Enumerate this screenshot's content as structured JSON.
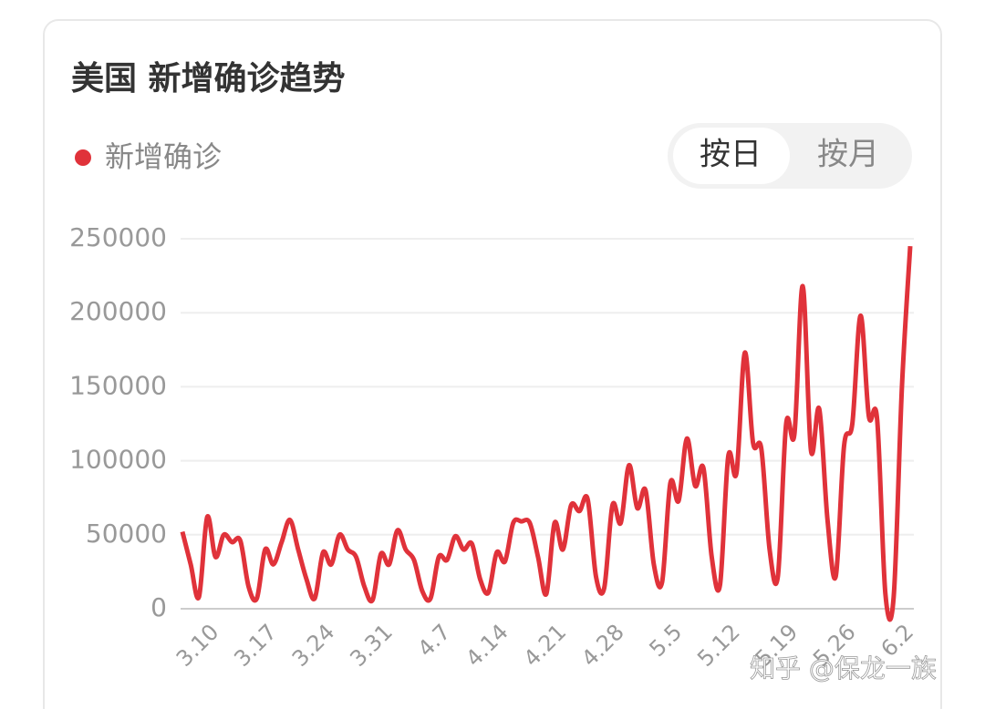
{
  "chart_data": {
    "type": "line",
    "title": "美国 新增确诊趋势",
    "categories": [
      null,
      null,
      null,
      null,
      "3.10",
      null,
      null,
      null,
      null,
      null,
      null,
      "3.17",
      null,
      null,
      null,
      null,
      null,
      null,
      "3.24",
      null,
      null,
      null,
      null,
      null,
      null,
      "3.31",
      null,
      null,
      null,
      null,
      null,
      null,
      "4.7",
      null,
      null,
      null,
      null,
      null,
      null,
      "4.14",
      null,
      null,
      null,
      null,
      null,
      null,
      "4.21",
      null,
      null,
      null,
      null,
      null,
      null,
      "4.28",
      null,
      null,
      null,
      null,
      null,
      null,
      "5.5",
      null,
      null,
      null,
      null,
      null,
      null,
      "5.12",
      null,
      null,
      null,
      null,
      null,
      null,
      "5.19",
      null,
      null,
      null,
      null,
      null,
      null,
      "5.26",
      null,
      null,
      null,
      null,
      null,
      null,
      "6.2"
    ],
    "series": [
      {
        "name": "新增确诊",
        "color": "#e0323a",
        "values": [
          52000,
          30000,
          8000,
          62000,
          35000,
          50000,
          45000,
          46000,
          15000,
          7000,
          40000,
          30000,
          45000,
          60000,
          40000,
          20000,
          7000,
          38000,
          30000,
          50000,
          40000,
          35000,
          15000,
          6000,
          37000,
          30000,
          53000,
          40000,
          33000,
          12000,
          7000,
          35000,
          33000,
          49000,
          40000,
          44000,
          20000,
          11000,
          38000,
          32000,
          58000,
          59000,
          58000,
          35000,
          10000,
          58000,
          40000,
          70000,
          66000,
          74000,
          22000,
          14000,
          70000,
          58000,
          97000,
          68000,
          80000,
          30000,
          18000,
          85000,
          73000,
          115000,
          83000,
          95000,
          35000,
          16000,
          103000,
          92000,
          173000,
          112000,
          108000,
          40000,
          22000,
          125000,
          118000,
          218000,
          107000,
          135000,
          60000,
          22000,
          110000,
          125000,
          198000,
          130000,
          128000,
          10000,
          8000,
          150000,
          245000
        ]
      }
    ],
    "ylim": [
      0,
      250000
    ],
    "yticks": [
      0,
      50000,
      100000,
      150000,
      200000,
      250000
    ],
    "grid": true,
    "controls": [
      "按日",
      "按月"
    ],
    "watermark": "知乎 @保龙一族"
  }
}
